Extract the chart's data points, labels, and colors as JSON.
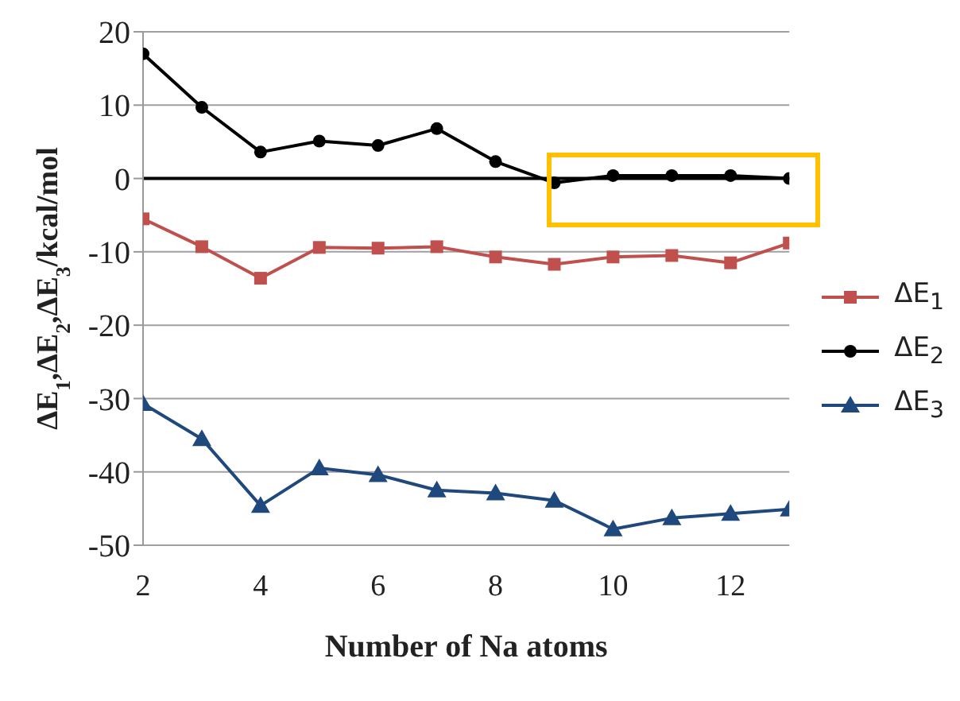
{
  "chart_data": {
    "type": "line",
    "xlabel": "Number of Na atoms",
    "ylabel": "ΔE$_{1}$,ΔE$_{2}$,ΔE$_{3}$/kcal/mol",
    "x": [
      2,
      3,
      4,
      5,
      6,
      7,
      8,
      9,
      10,
      11,
      12,
      13
    ],
    "series": [
      {
        "name": "ΔE$_{1}$",
        "color": "#c0504d",
        "marker": "square",
        "values": [
          -5.5,
          -9.3,
          -13.6,
          -9.4,
          -9.5,
          -9.3,
          -10.7,
          -11.7,
          -10.7,
          -10.5,
          -11.5,
          -8.8
        ]
      },
      {
        "name": "ΔE$_{2}$",
        "color": "#000000",
        "marker": "circle",
        "values": [
          17,
          9.7,
          3.6,
          5.1,
          4.5,
          6.8,
          2.3,
          -0.6,
          0.4,
          0.4,
          0.4,
          0
        ]
      },
      {
        "name": "ΔE$_{3}$",
        "color": "#1f497d",
        "marker": "triangle",
        "values": [
          -30.7,
          -35.5,
          -44.6,
          -39.5,
          -40.4,
          -42.5,
          -42.9,
          -43.9,
          -47.8,
          -46.3,
          -45.7,
          -45.1
        ]
      }
    ],
    "xlim": [
      2,
      13
    ],
    "xticks": [
      2,
      4,
      6,
      8,
      10,
      12
    ],
    "ylim": [
      -50,
      20
    ],
    "yticks": [
      -50,
      -40,
      -30,
      -20,
      -10,
      0,
      10,
      20
    ],
    "ref_lines": [
      {
        "axis": "y",
        "value": 0,
        "color": "#000000"
      }
    ],
    "grid": "y",
    "legend": "right",
    "line_style": "solid"
  }
}
